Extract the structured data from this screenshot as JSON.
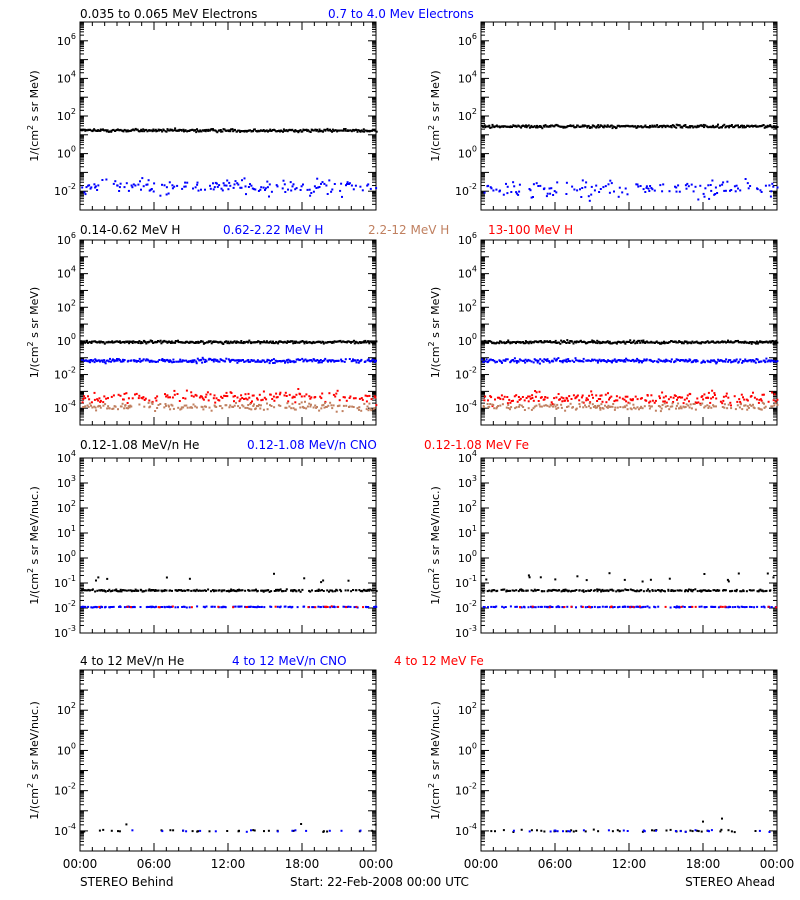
{
  "footer": {
    "left": "STEREO Behind",
    "center": "Start: 22-Feb-2008 00:00 UTC",
    "right": "STEREO Ahead"
  },
  "x_axis": {
    "ticks": [
      "00:00",
      "06:00",
      "12:00",
      "18:00",
      "00:00"
    ],
    "tick_hours": [
      0,
      6,
      12,
      18,
      24
    ],
    "range_hours": [
      0,
      24
    ]
  },
  "colors": {
    "black": "#000000",
    "blue": "#0000ff",
    "red": "#ff0000",
    "tan": "#c08060"
  },
  "chart_data": [
    {
      "type": "scatter",
      "row": 0,
      "ylabel": "1/(cm2 s sr MeV)",
      "yscale": "log",
      "ylim_exp": [
        -3,
        7
      ],
      "ytick_exps": [
        -2,
        0,
        2,
        4,
        6
      ],
      "legend": [
        {
          "text": "0.035 to 0.065 MeV Electrons",
          "color": "#000000"
        },
        {
          "text": "0.7 to 4.0 Mev Electrons",
          "color": "#0000ff"
        }
      ],
      "panels": {
        "behind": [
          {
            "name": "0.035 to 0.065 MeV Electrons",
            "color": "#000000",
            "level": 17,
            "spread": 0.04,
            "density": 1.0
          },
          {
            "name": "0.7 to 4.0 Mev Electrons",
            "color": "#0000ff",
            "level": 0.018,
            "spread": 0.22,
            "density": 0.55
          }
        ],
        "ahead": [
          {
            "name": "0.035 to 0.065 MeV Electrons",
            "color": "#000000",
            "level": 28,
            "spread": 0.04,
            "density": 1.0
          },
          {
            "name": "0.7 to 4.0 Mev Electrons",
            "color": "#0000ff",
            "level": 0.014,
            "spread": 0.25,
            "density": 0.5
          }
        ]
      }
    },
    {
      "type": "scatter",
      "row": 1,
      "ylabel": "1/(cm2 s sr MeV)",
      "yscale": "log",
      "ylim_exp": [
        -5,
        6
      ],
      "ytick_exps": [
        -4,
        -2,
        0,
        2,
        4,
        6
      ],
      "legend": [
        {
          "text": "0.14-0.62 MeV H",
          "color": "#000000"
        },
        {
          "text": "0.62-2.22 MeV H",
          "color": "#0000ff"
        },
        {
          "text": "2.2-12 MeV H",
          "color": "#c08060"
        },
        {
          "text": "13-100 MeV H",
          "color": "#ff0000"
        }
      ],
      "panels": {
        "behind": [
          {
            "name": "0.14-0.62 MeV H",
            "color": "#000000",
            "level": 0.85,
            "spread": 0.04,
            "density": 1.0
          },
          {
            "name": "0.62-2.22 MeV H",
            "color": "#0000ff",
            "level": 0.065,
            "spread": 0.06,
            "density": 0.9
          },
          {
            "name": "13-100 MeV H",
            "color": "#ff0000",
            "level": 0.00045,
            "spread": 0.18,
            "density": 0.6
          },
          {
            "name": "2.2-12 MeV H",
            "color": "#c08060",
            "level": 0.00012,
            "spread": 0.1,
            "density": 0.6
          }
        ],
        "ahead": [
          {
            "name": "0.14-0.62 MeV H",
            "color": "#000000",
            "level": 0.85,
            "spread": 0.04,
            "density": 1.0
          },
          {
            "name": "0.62-2.22 MeV H",
            "color": "#0000ff",
            "level": 0.065,
            "spread": 0.06,
            "density": 0.9
          },
          {
            "name": "13-100 MeV H",
            "color": "#ff0000",
            "level": 0.0004,
            "spread": 0.18,
            "density": 0.6
          },
          {
            "name": "2.2-12 MeV H",
            "color": "#c08060",
            "level": 0.00012,
            "spread": 0.1,
            "density": 0.6
          }
        ]
      }
    },
    {
      "type": "scatter",
      "row": 2,
      "ylabel": "1/(cm2 s sr MeV/nuc.)",
      "yscale": "log",
      "ylim_exp": [
        -3,
        4
      ],
      "ytick_exps": [
        -3,
        -2,
        -1,
        0,
        1,
        2,
        3,
        4
      ],
      "legend": [
        {
          "text": "0.12-1.08 MeV/n He",
          "color": "#000000"
        },
        {
          "text": "0.12-1.08 MeV/n CNO",
          "color": "#0000ff"
        },
        {
          "text": "0.12-1.08 MeV Fe",
          "color": "#ff0000"
        }
      ],
      "panels": {
        "behind": [
          {
            "name": "0.12-1.08 MeV/n He",
            "color": "#000000",
            "level": 0.05,
            "spread": 0.02,
            "density": 0.75
          },
          {
            "name": "0.12-1.08 MeV/n CNO",
            "color": "#0000ff",
            "level": 0.011,
            "spread": 0.01,
            "density": 0.45
          },
          {
            "name": "0.12-1.08 MeV Fe",
            "color": "#ff0000",
            "level": 0.011,
            "spread": 0.01,
            "density": 0.08
          }
        ],
        "ahead": [
          {
            "name": "0.12-1.08 MeV/n He",
            "color": "#000000",
            "level": 0.05,
            "spread": 0.02,
            "density": 0.75
          },
          {
            "name": "0.12-1.08 MeV/n CNO",
            "color": "#0000ff",
            "level": 0.011,
            "spread": 0.01,
            "density": 0.45
          },
          {
            "name": "0.12-1.08 MeV Fe",
            "color": "#ff0000",
            "level": 0.011,
            "spread": 0.01,
            "density": 0.08
          }
        ]
      }
    },
    {
      "type": "scatter",
      "row": 3,
      "ylabel": "1/(cm2 s sr MeV/nuc.)",
      "yscale": "log",
      "ylim_exp": [
        -5,
        4
      ],
      "ytick_exps": [
        -4,
        -2,
        0,
        2
      ],
      "legend": [
        {
          "text": "4 to 12 MeV/n He",
          "color": "#000000"
        },
        {
          "text": "4 to 12 MeV/n CNO",
          "color": "#0000ff"
        },
        {
          "text": "4 to 12 MeV Fe",
          "color": "#ff0000"
        }
      ],
      "panels": {
        "behind": [
          {
            "name": "4 to 12 MeV/n He",
            "color": "#000000",
            "level": 0.0001,
            "spread": 0.03,
            "density": 0.12
          },
          {
            "name": "4 to 12 MeV/n CNO",
            "color": "#0000ff",
            "level": 0.0001,
            "spread": 0.02,
            "density": 0.05
          }
        ],
        "ahead": [
          {
            "name": "4 to 12 MeV/n He",
            "color": "#000000",
            "level": 0.0001,
            "spread": 0.03,
            "density": 0.12
          },
          {
            "name": "4 to 12 MeV/n CNO",
            "color": "#0000ff",
            "level": 0.0001,
            "spread": 0.02,
            "density": 0.08
          }
        ]
      }
    }
  ]
}
